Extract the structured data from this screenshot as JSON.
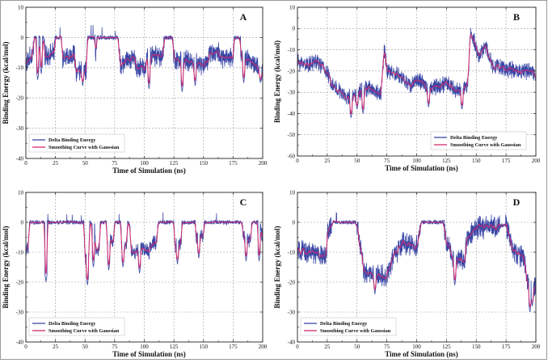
{
  "colors": {
    "raw": "#3a47a6",
    "smooth": "#d62a6e",
    "grid": "#9a9a9a"
  },
  "chart_data": [
    {
      "panel": "A",
      "type": "line",
      "xlabel": "Time of Simulation (ns)",
      "ylabel": "Binding Energy (kcal/mol)",
      "xlim": [
        0,
        200
      ],
      "ylim": [
        -40,
        10
      ],
      "xticks": [
        0,
        25,
        50,
        75,
        100,
        125,
        150,
        175,
        200
      ],
      "yticks": [
        10,
        0,
        -10,
        -20,
        -30,
        -40
      ],
      "grid": true,
      "legend_position": "bottom-left",
      "series": [
        {
          "name": "Delta Binding Energy",
          "noise": 2.8,
          "segments": [
            [
              0,
              -9
            ],
            [
              6,
              -5
            ],
            [
              7,
              0
            ],
            [
              15,
              0
            ],
            [
              16,
              -6
            ],
            [
              24,
              -5
            ],
            [
              25,
              0
            ],
            [
              30,
              0
            ],
            [
              31,
              -7
            ],
            [
              41,
              -6
            ],
            [
              42,
              -11
            ],
            [
              51,
              -11
            ],
            [
              52,
              0
            ],
            [
              58,
              0
            ],
            [
              59,
              -6
            ],
            [
              60,
              0
            ],
            [
              78,
              0
            ],
            [
              79,
              -6
            ],
            [
              80,
              -9
            ],
            [
              92,
              -6
            ],
            [
              93,
              -10
            ],
            [
              101,
              -10
            ],
            [
              102,
              -6
            ],
            [
              116,
              -6
            ],
            [
              117,
              0
            ],
            [
              124,
              0
            ],
            [
              125,
              -7
            ],
            [
              138,
              -8
            ],
            [
              152,
              -9
            ],
            [
              155,
              -5
            ],
            [
              163,
              -5
            ],
            [
              165,
              -7
            ],
            [
              175,
              -7
            ],
            [
              176,
              0
            ],
            [
              181,
              0
            ],
            [
              182,
              -7
            ],
            [
              191,
              -8
            ],
            [
              200,
              -12
            ]
          ],
          "dips": [
            [
              10,
              -14
            ],
            [
              13,
              -12
            ],
            [
              48,
              -16
            ],
            [
              104,
              -17
            ],
            [
              132,
              -18
            ],
            [
              143,
              -16
            ],
            [
              184,
              -15
            ],
            [
              198,
              -15
            ]
          ]
        },
        {
          "name": "Smoothing Curve with Gaussian"
        }
      ]
    },
    {
      "panel": "B",
      "type": "line",
      "xlabel": "Time of Simulation (ns)",
      "ylabel": "Binding Energy (kcal/mol)",
      "xlim": [
        0,
        200
      ],
      "ylim": [
        -60,
        10
      ],
      "xticks": [
        0,
        25,
        50,
        75,
        100,
        125,
        150,
        175,
        200
      ],
      "yticks": [
        10,
        0,
        -10,
        -20,
        -30,
        -40,
        -50,
        -60
      ],
      "grid": true,
      "legend_position": "bottom-right",
      "series": [
        {
          "name": "Delta Binding Energy",
          "noise": 3.2,
          "segments": [
            [
              0,
              -16
            ],
            [
              12,
              -17
            ],
            [
              15,
              -15
            ],
            [
              23,
              -19
            ],
            [
              30,
              -27
            ],
            [
              42,
              -33
            ],
            [
              50,
              -30
            ],
            [
              60,
              -28
            ],
            [
              70,
              -31
            ],
            [
              73,
              -9
            ],
            [
              75,
              -20
            ],
            [
              85,
              -22
            ],
            [
              95,
              -27
            ],
            [
              100,
              -24
            ],
            [
              110,
              -28
            ],
            [
              125,
              -26
            ],
            [
              133,
              -29
            ],
            [
              140,
              -29
            ],
            [
              143,
              -26
            ],
            [
              145,
              -2
            ],
            [
              148,
              -5
            ],
            [
              152,
              -13
            ],
            [
              158,
              -8
            ],
            [
              163,
              -17
            ],
            [
              175,
              -19
            ],
            [
              200,
              -21
            ]
          ],
          "dips": [
            [
              45,
              -42
            ],
            [
              55,
              -40
            ],
            [
              110,
              -37
            ],
            [
              138,
              -38
            ],
            [
              50,
              -38
            ]
          ]
        },
        {
          "name": "Smoothing Curve with Gaussian"
        }
      ]
    },
    {
      "panel": "C",
      "type": "line",
      "xlabel": "Time of Simulation (ns)",
      "ylabel": "Binding Energy (kcal/mol)",
      "xlim": [
        0,
        200
      ],
      "ylim": [
        -40,
        10
      ],
      "xticks": [
        0,
        25,
        50,
        75,
        100,
        125,
        150,
        175,
        200
      ],
      "yticks": [
        10,
        0,
        -10,
        -20,
        -30,
        -40
      ],
      "grid": true,
      "legend_position": "bottom-left",
      "series": [
        {
          "name": "Delta Binding Energy",
          "noise": 2.0,
          "segments": [
            [
              0,
              -9
            ],
            [
              2,
              -9
            ],
            [
              3,
              0
            ],
            [
              49,
              0
            ],
            [
              50,
              -12
            ],
            [
              53,
              -12
            ],
            [
              54,
              0
            ],
            [
              58,
              -1
            ],
            [
              59,
              -9
            ],
            [
              62,
              -9
            ],
            [
              63,
              0
            ],
            [
              68,
              0
            ],
            [
              69,
              -6
            ],
            [
              74,
              -6
            ],
            [
              75,
              0
            ],
            [
              80,
              0
            ],
            [
              81,
              -8
            ],
            [
              85,
              -8
            ],
            [
              86,
              0
            ],
            [
              88,
              -1
            ],
            [
              89,
              -10
            ],
            [
              93,
              -10
            ],
            [
              95,
              -8
            ],
            [
              104,
              -10
            ],
            [
              106,
              -7
            ],
            [
              110,
              -7
            ],
            [
              112,
              0
            ],
            [
              125,
              0
            ],
            [
              126,
              -8
            ],
            [
              131,
              -7
            ],
            [
              132,
              0
            ],
            [
              143,
              0
            ],
            [
              144,
              -5
            ],
            [
              150,
              -4
            ],
            [
              151,
              0
            ],
            [
              182,
              0
            ],
            [
              184,
              -5
            ],
            [
              190,
              -6
            ],
            [
              191,
              0
            ],
            [
              198,
              0
            ],
            [
              200,
              -6
            ]
          ],
          "dips": [
            [
              17,
              -20
            ],
            [
              52,
              -21
            ],
            [
              57,
              -15
            ],
            [
              70,
              -16
            ],
            [
              82,
              -15
            ],
            [
              96,
              -17
            ],
            [
              128,
              -14
            ],
            [
              146,
              -12
            ],
            [
              186,
              -13
            ],
            [
              197,
              -13
            ]
          ]
        },
        {
          "name": "Smoothing Curve with Gaussian"
        }
      ]
    },
    {
      "panel": "D",
      "type": "line",
      "xlabel": "Time of Simulation (ns)",
      "ylabel": "Binding Energy (kcal/mol)",
      "xlim": [
        0,
        200
      ],
      "ylim": [
        -40,
        10
      ],
      "xticks": [
        0,
        25,
        50,
        75,
        100,
        125,
        150,
        175,
        200
      ],
      "yticks": [
        10,
        0,
        -10,
        -20,
        -30,
        -40
      ],
      "grid": true,
      "legend_position": "bottom-left",
      "series": [
        {
          "name": "Delta Binding Energy",
          "noise": 3.0,
          "segments": [
            [
              0,
              -10
            ],
            [
              10,
              -10
            ],
            [
              20,
              -11
            ],
            [
              24,
              -12
            ],
            [
              25,
              -3
            ],
            [
              28,
              -2
            ],
            [
              30,
              0
            ],
            [
              49,
              0
            ],
            [
              50,
              -2
            ],
            [
              52,
              -6
            ],
            [
              56,
              -17
            ],
            [
              75,
              -18
            ],
            [
              80,
              -12
            ],
            [
              88,
              -7
            ],
            [
              100,
              -8
            ],
            [
              104,
              0
            ],
            [
              122,
              0
            ],
            [
              124,
              -5
            ],
            [
              130,
              -12
            ],
            [
              140,
              -13
            ],
            [
              142,
              -5
            ],
            [
              150,
              -2
            ],
            [
              175,
              -1
            ],
            [
              178,
              -5
            ],
            [
              182,
              -10
            ],
            [
              190,
              -12
            ],
            [
              193,
              -20
            ],
            [
              200,
              -22
            ]
          ],
          "dips": [
            [
              65,
              -24
            ],
            [
              132,
              -21
            ],
            [
              195,
              -30
            ],
            [
              197,
              -28
            ]
          ]
        },
        {
          "name": "Smoothing Curve with Gaussian"
        }
      ]
    }
  ]
}
